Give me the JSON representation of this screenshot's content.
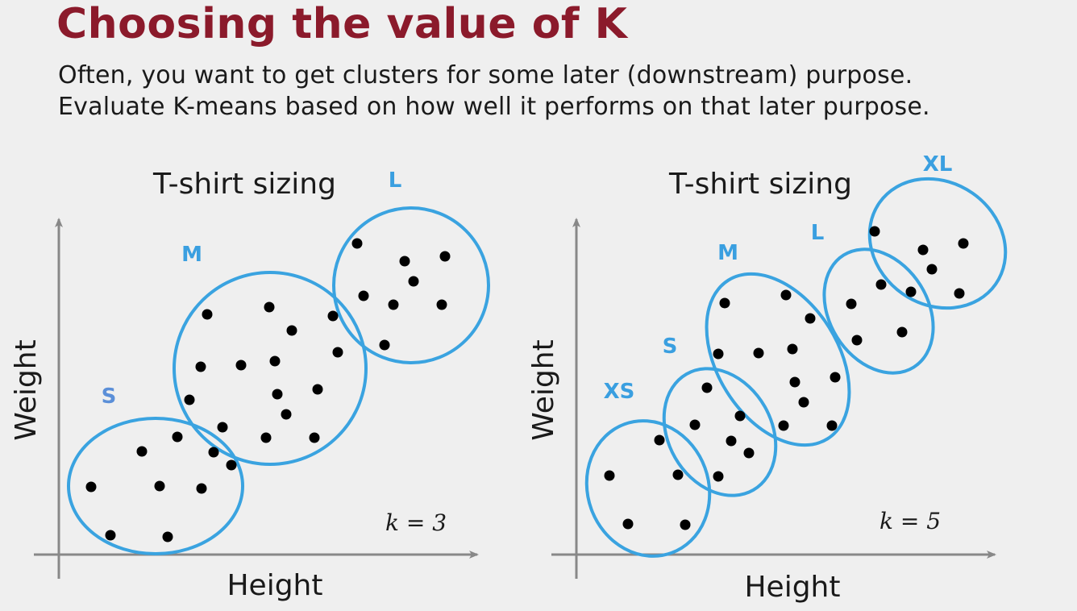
{
  "slide": {
    "title": "Choosing the value of K",
    "subtitle_line1": "Often, you want to get clusters for some later (downstream) purpose.",
    "subtitle_line2": "Evaluate K-means based on how well it performs on that later purpose."
  },
  "colors": {
    "title": "#8b1a2b",
    "cluster_outline": "#3aa3e0",
    "cluster_label": "#3a9fe0",
    "small_label_left": "#5b8fd8",
    "point": "#000000"
  },
  "plots": [
    {
      "title": "T-shirt sizing",
      "xlabel": "Height",
      "ylabel": "Weight",
      "k_label": "k = 3",
      "cluster_labels": [
        "S",
        "M",
        "L"
      ]
    },
    {
      "title": "T-shirt sizing",
      "xlabel": "Height",
      "ylabel": "Weight",
      "k_label": "k = 5",
      "cluster_labels": [
        "XS",
        "S",
        "M",
        "L",
        "XL"
      ]
    }
  ]
}
